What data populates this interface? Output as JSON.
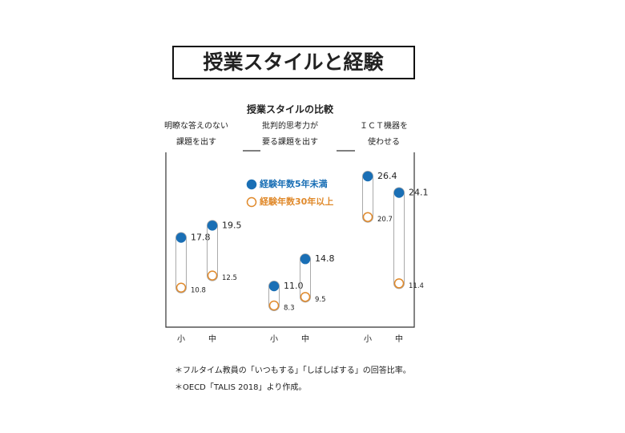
{
  "chart_data": {
    "type": "dumbbell",
    "title": "授業スタイルと経験",
    "subtitle": "授業スタイルの比較",
    "groups": [
      [
        "明瞭な答えのない",
        "課題を出す"
      ],
      [
        "批判的思考力が",
        "要る課題を出す"
      ],
      [
        "ＩＣＴ機器を",
        "使わせる"
      ]
    ],
    "categories": [
      "小",
      "中",
      "小",
      "中",
      "小",
      "中"
    ],
    "series": [
      {
        "name": "経験年数5年未満",
        "color": "#1a6fb5",
        "values": [
          17.8,
          19.5,
          11.0,
          14.8,
          26.4,
          24.1
        ],
        "value_labels": [
          "17.8",
          "19.5",
          "11.0",
          "14.8",
          "26.4",
          "24.1"
        ]
      },
      {
        "name": "経験年数30年以上",
        "color": "#e08a2c",
        "values": [
          10.8,
          12.5,
          8.3,
          9.5,
          20.7,
          11.4
        ]
      }
    ],
    "notes": [
      "＊フルタイム教員の「いつもする」「しばしばする」の回答比率。",
      "＊OECD「TALIS 2018」より作成。"
    ]
  }
}
